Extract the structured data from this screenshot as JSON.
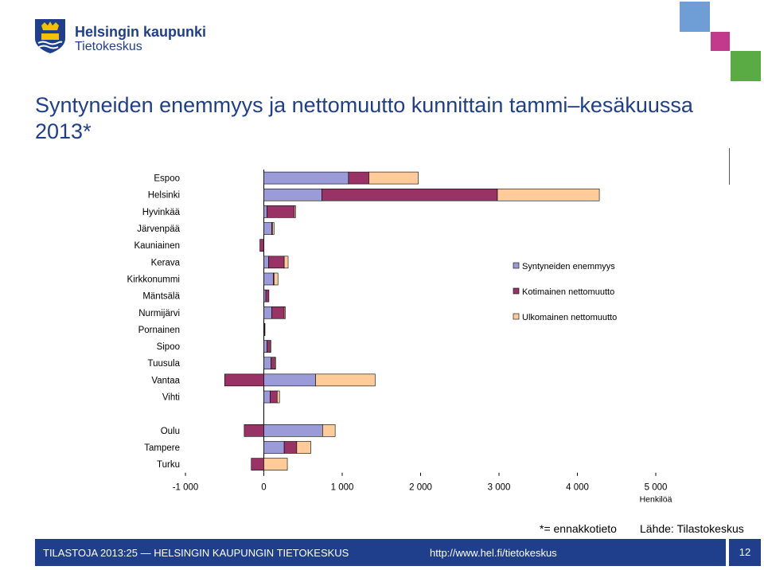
{
  "header": {
    "logo_name": "Helsingin kaupunki",
    "logo_sub": "Tietokeskus",
    "logo_icon": "helsinki-crest-icon"
  },
  "title": "Syntyneiden enemmyys ja nettomuutto kunnittain tammi–kesäkuussa 2013*",
  "colors": {
    "brand": "#1f3f8c",
    "syntyneet": "#9b9bd9",
    "kotimainen": "#993366",
    "ulkomainen": "#ffcc99"
  },
  "chart_data": {
    "type": "bar",
    "orientation": "horizontal",
    "stacked": true,
    "categories": [
      "Espoo",
      "Helsinki",
      "Hyvinkää",
      "Järvenpää",
      "Kauniainen",
      "Kerava",
      "Kirkkonummi",
      "Mäntsälä",
      "Nurmijärvi",
      "Pornainen",
      "Sipoo",
      "Tuusula",
      "Vantaa",
      "Vihti",
      "",
      "Oulu",
      "Tampere",
      "Turku"
    ],
    "series": [
      {
        "name": "Syntyneiden enemmyys",
        "values": [
          1080,
          740,
          40,
          100,
          0,
          60,
          120,
          25,
          100,
          5,
          40,
          90,
          660,
          80,
          null,
          750,
          260,
          0
        ]
      },
      {
        "name": "Kotimainen nettomuutto",
        "values": [
          260,
          2240,
          350,
          10,
          -50,
          200,
          10,
          40,
          160,
          10,
          40,
          50,
          -500,
          90,
          null,
          -250,
          160,
          -160
        ]
      },
      {
        "name": "Ulkomainen nettomuutto",
        "values": [
          630,
          1300,
          15,
          20,
          0,
          50,
          50,
          0,
          15,
          0,
          10,
          10,
          760,
          30,
          null,
          160,
          180,
          300
        ]
      }
    ],
    "xlim": [
      -1000,
      5000
    ],
    "xticks": [
      "-1 000",
      "0",
      "1 000",
      "2 000",
      "3 000",
      "4 000",
      "5 000"
    ],
    "xtick_values": [
      -1000,
      0,
      1000,
      2000,
      3000,
      4000,
      5000
    ],
    "xlabel": "Henkilöä",
    "legend_position": "right"
  },
  "footnotes": {
    "estimate": "*= ennakkotieto",
    "source": "Lähde: Tilastokeskus"
  },
  "footer": {
    "left": "TILASTOJA 2013:25 — HELSINGIN KAUPUNGIN TIETOKESKUS",
    "url": "http://www.hel.fi/tietokeskus",
    "page": "12"
  }
}
